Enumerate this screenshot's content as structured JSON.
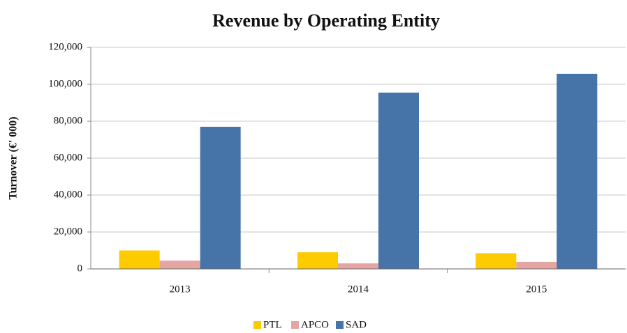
{
  "chart_data": {
    "type": "bar",
    "title": "Revenue by Operating Entity",
    "y_label": "Turnover (€' 000)",
    "categories": [
      "2013",
      "2014",
      "2015"
    ],
    "series": [
      {
        "name": "PTL",
        "color": "#fecb00",
        "values": [
          10000,
          9000,
          8500
        ]
      },
      {
        "name": "APCO",
        "color": "#e5a6a3",
        "values": [
          4500,
          3000,
          3800
        ]
      },
      {
        "name": "SAD",
        "color": "#4674a8",
        "values": [
          77000,
          95500,
          105700
        ]
      }
    ],
    "ylim": [
      0,
      120000
    ],
    "yticks": [
      0,
      {
        "value": 20000,
        "label": "20,000"
      },
      {
        "value": 40000,
        "label": "40,000"
      },
      {
        "value": 60000,
        "label": "60,000"
      },
      {
        "value": 80000,
        "label": "80,000"
      },
      {
        "value": 100000,
        "label": "100,000"
      },
      {
        "value": 120000,
        "label": "120,000"
      }
    ],
    "grid": true,
    "legend": "bottom"
  }
}
